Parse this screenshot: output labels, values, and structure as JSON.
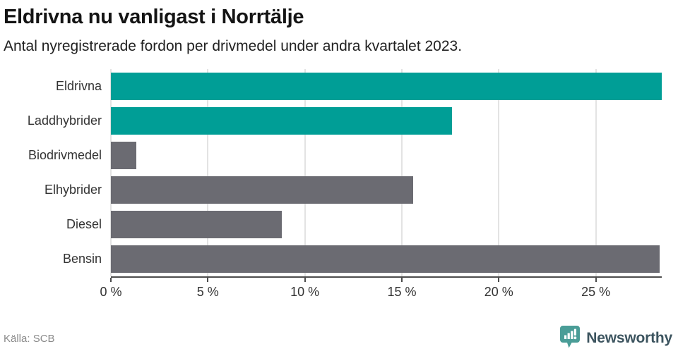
{
  "header": {
    "title": "Eldrivna nu vanligast i Norrtälje",
    "subtitle": "Antal nyregistrerade fordon per drivmedel under andra kvartalet 2023."
  },
  "chart_data": {
    "type": "bar",
    "orientation": "horizontal",
    "title": "Eldrivna nu vanligast i Norrtälje",
    "subtitle": "Antal nyregistrerade fordon per drivmedel under andra kvartalet 2023.",
    "categories": [
      "Eldrivna",
      "Laddhybrider",
      "Biodrivmedel",
      "Elhybrider",
      "Diesel",
      "Bensin"
    ],
    "values": [
      28.4,
      17.6,
      1.3,
      15.6,
      8.8,
      28.3
    ],
    "unit": "%",
    "bar_colors": [
      "#009e96",
      "#009e96",
      "#6b6b72",
      "#6b6b72",
      "#6b6b72",
      "#6b6b72"
    ],
    "xlim": [
      0,
      28.4
    ],
    "xticks": [
      0,
      5,
      10,
      15,
      20,
      25
    ],
    "xtick_labels": [
      "0 %",
      "5 %",
      "10 %",
      "15 %",
      "20 %",
      "25 %"
    ],
    "grid": "vertical-gridlines",
    "legend": "none"
  },
  "footer": {
    "source": "Källa: SCB",
    "brand": "Newsworthy"
  },
  "colors": {
    "accent_teal": "#009e96",
    "neutral_gray": "#6b6b72",
    "gridline": "#e3e3e3",
    "axis": "#4d4d4d",
    "brand_icon": "#4a9d97",
    "brand_text": "#3c545f"
  }
}
